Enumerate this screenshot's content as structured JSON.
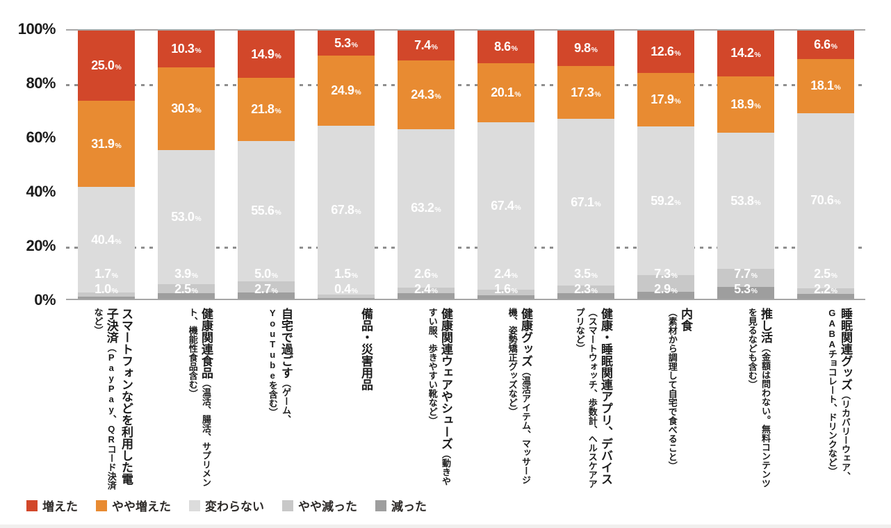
{
  "chart_data": {
    "type": "bar",
    "subtype": "stacked-100-percent",
    "title": "",
    "categories": [
      {
        "title": "スマートフォンなどを利用した電子決済",
        "note": "（PayPay、QRコード決済など）"
      },
      {
        "title": "健康関連食品",
        "note": "（温活、腸活、サプリメント、機能性食品含む）"
      },
      {
        "title": "自宅で過ごす",
        "note": "（ゲーム、YouTubeを含む）"
      },
      {
        "title": "備品・災害用品",
        "note": ""
      },
      {
        "title": "健康関連ウェアやシューズ",
        "note": "（動きやすい服、歩きやすい靴など）"
      },
      {
        "title": "健康グッズ",
        "note": "（温活アイテム、マッサージ機、姿勢矯正グッズなど）"
      },
      {
        "title": "健康・睡眠関連アプリ、デバイス",
        "note": "（スマートウォッチ、歩数計、ヘルスケアアプリなど）"
      },
      {
        "title": "内食",
        "note": "（素材から調理して自宅で食べること）"
      },
      {
        "title": "推し活",
        "note": "（金額は問わない。無料コンテンツを見るなども含む）"
      },
      {
        "title": "睡眠関連グッズ",
        "note": "（リカバリーウェア、GABAチョコレート、ドリンクなど）"
      }
    ],
    "series": [
      {
        "name": "増えた",
        "color": "#D2472A",
        "values": [
          "25.0",
          "10.3",
          "14.9",
          "5.3",
          "7.4",
          "8.6",
          "9.8",
          "12.6",
          "14.2",
          "6.6"
        ]
      },
      {
        "name": "やや増えた",
        "color": "#E88B32",
        "values": [
          "31.9",
          "30.3",
          "21.8",
          "24.9",
          "24.3",
          "20.1",
          "17.3",
          "17.9",
          "18.9",
          "18.1"
        ]
      },
      {
        "name": "変わらない",
        "color": "#DCDCDC",
        "values": [
          "40.4",
          "53.0",
          "55.6",
          "67.8",
          "63.2",
          "67.4",
          "67.1",
          "59.2",
          "53.8",
          "70.6"
        ]
      },
      {
        "name": "やや減った",
        "color": "#C8C8C8",
        "values": [
          "1.7",
          "3.9",
          "5.0",
          "1.5",
          "2.6",
          "2.4",
          "3.5",
          "7.3",
          "7.7",
          "2.5"
        ]
      },
      {
        "name": "減った",
        "color": "#9E9E9E",
        "values": [
          "1.0",
          "2.5",
          "2.7",
          "0.4",
          "2.4",
          "1.6",
          "2.3",
          "2.9",
          "5.3",
          "2.2"
        ]
      }
    ],
    "value_suffix": "%",
    "y_axis": {
      "ticks": [
        "100%",
        "80%",
        "60%",
        "40%",
        "20%",
        "0%"
      ],
      "range": [
        0,
        100
      ],
      "dotted_gridlines_at": [
        80,
        20
      ]
    },
    "legend_position": "bottom-left",
    "text_color": "#1c1c1c",
    "axis_line_color": "#a6a6a6"
  }
}
